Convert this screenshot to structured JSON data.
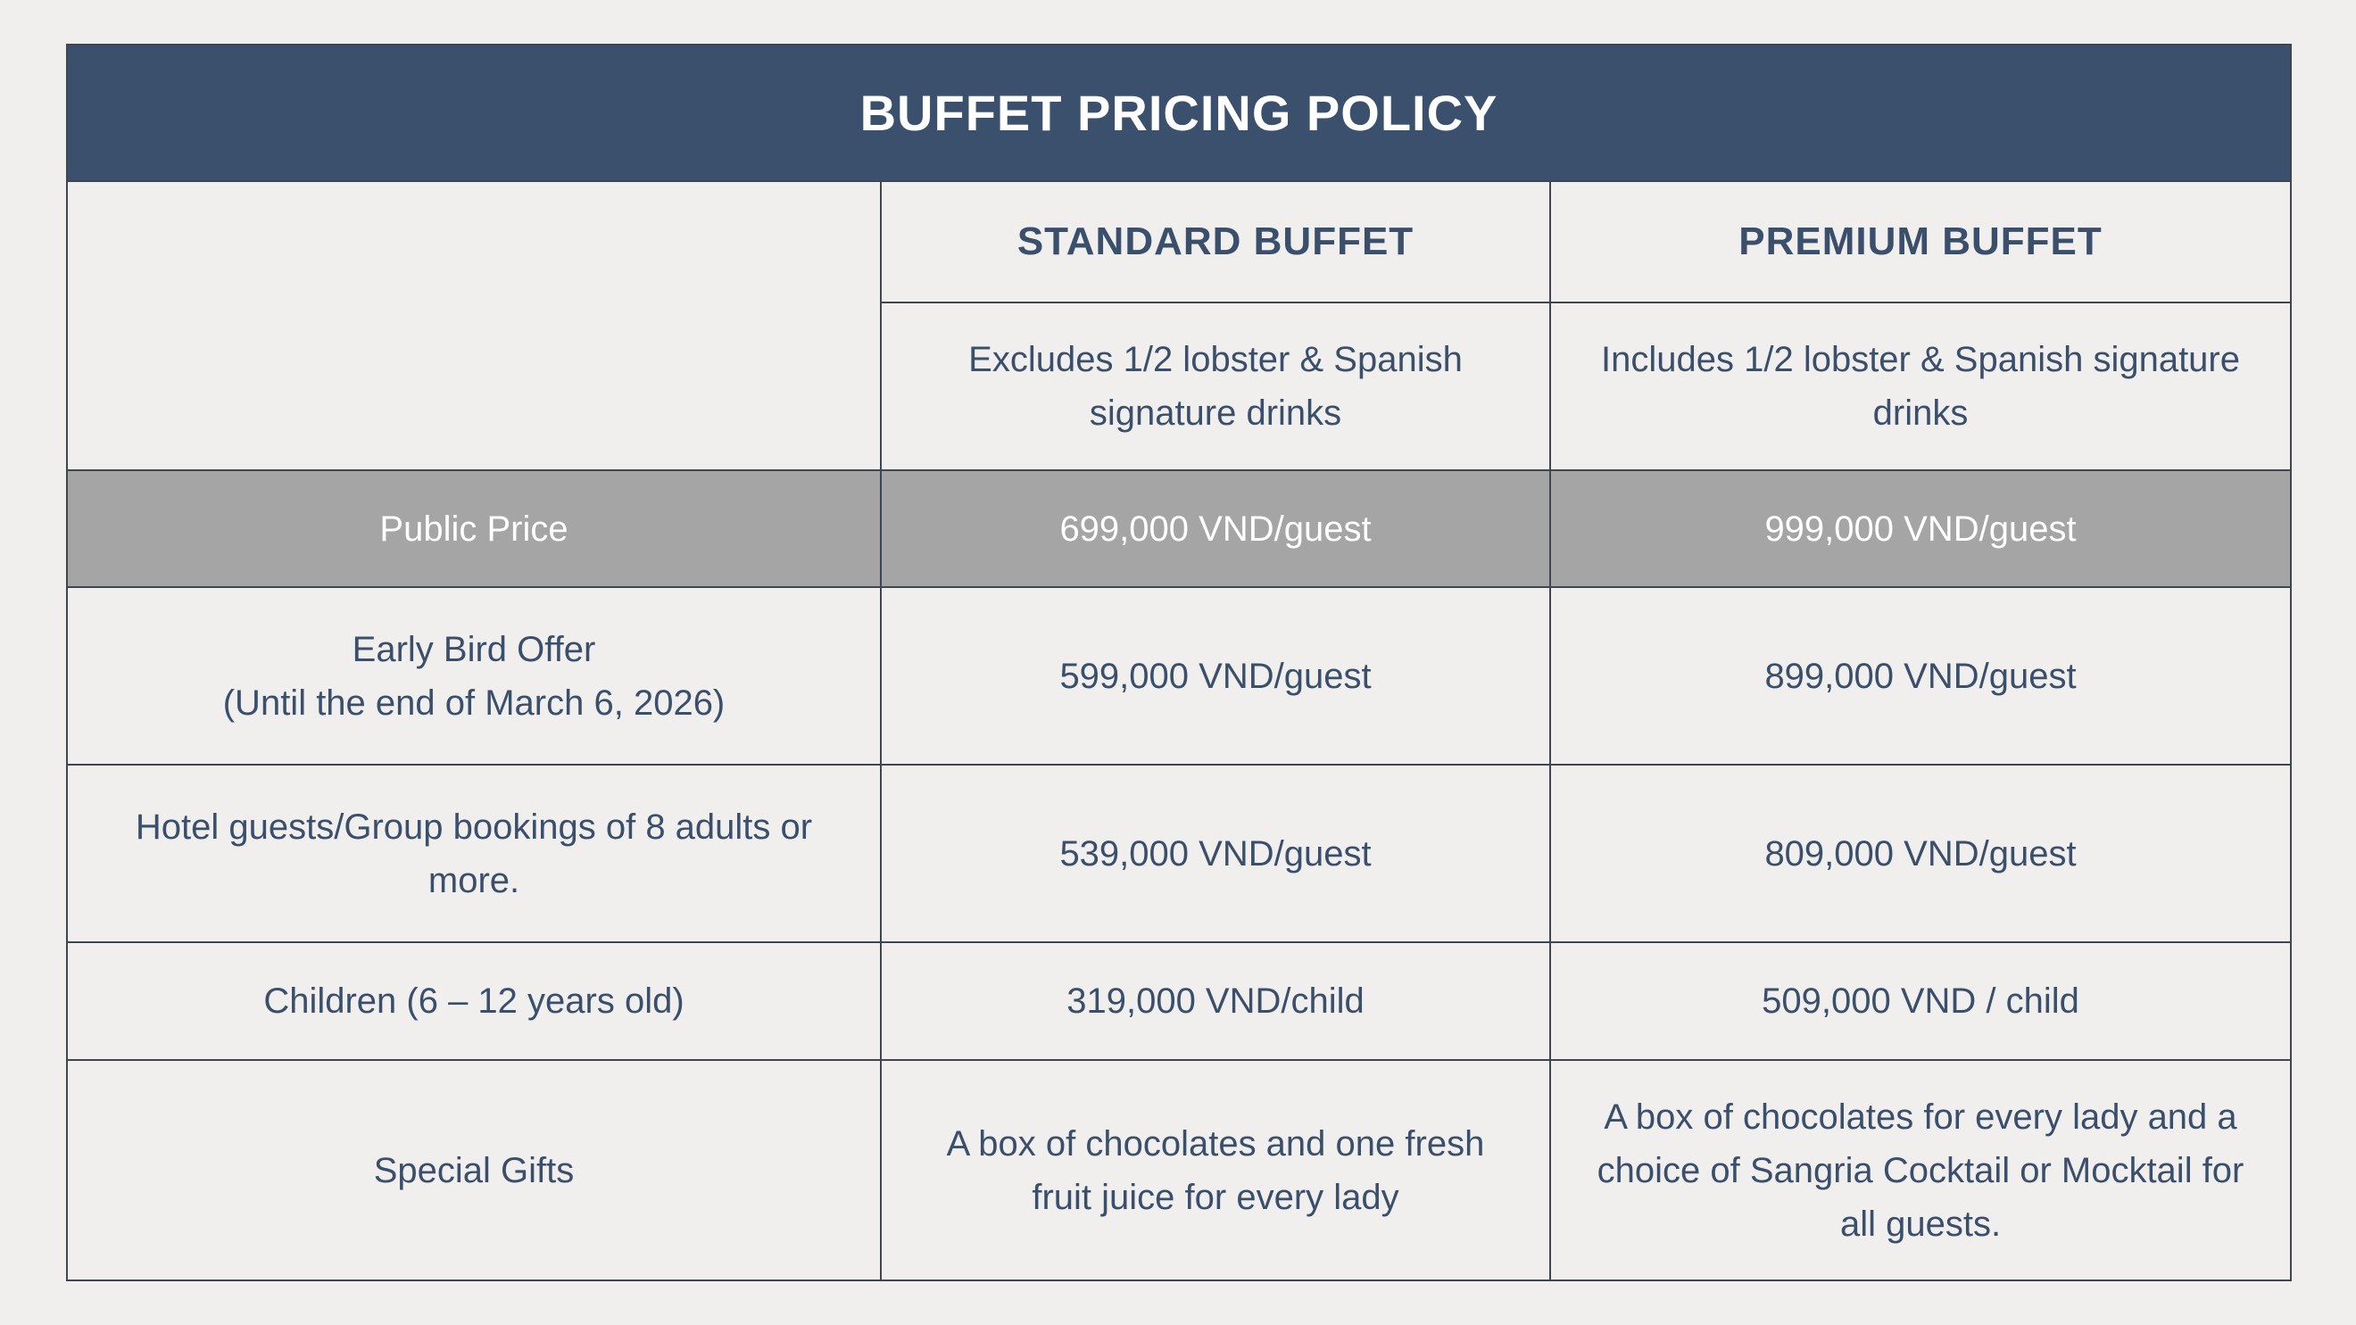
{
  "title": "BUFFET PRICING POLICY",
  "columns": {
    "standard": {
      "name": "STANDARD BUFFET",
      "description": "Excludes 1/2 lobster & Spanish signature drinks"
    },
    "premium": {
      "name": "PREMIUM BUFFET",
      "description": "Includes 1/2 lobster & Spanish signature drinks"
    }
  },
  "rows": {
    "public": {
      "label": "Public Price",
      "standard": "699,000 VND/guest",
      "premium": "999,000 VND/guest"
    },
    "early_bird": {
      "label": "Early Bird Offer",
      "sublabel": "(Until the end of March 6, 2026)",
      "standard": "599,000 VND/guest",
      "premium": "899,000 VND/guest"
    },
    "hotel": {
      "label": "Hotel guests/Group bookings of 8 adults or more.",
      "standard": "539,000 VND/guest",
      "premium": "809,000 VND/guest"
    },
    "children": {
      "label": "Children (6 – 12 years old)",
      "standard": "319,000 VND/child",
      "premium": "509,000 VND / child"
    },
    "gifts": {
      "label": "Special Gifts",
      "standard": "A box of chocolates and one fresh fruit juice for every lady",
      "premium": "A box of chocolates for every lady and a choice of Sangria Cocktail or Mocktail for all guests."
    }
  },
  "colors": {
    "header_bg": "#3a506d",
    "text": "#3a4f6c",
    "highlight_row_bg": "#a5a5a5",
    "page_bg": "#f1efed"
  }
}
